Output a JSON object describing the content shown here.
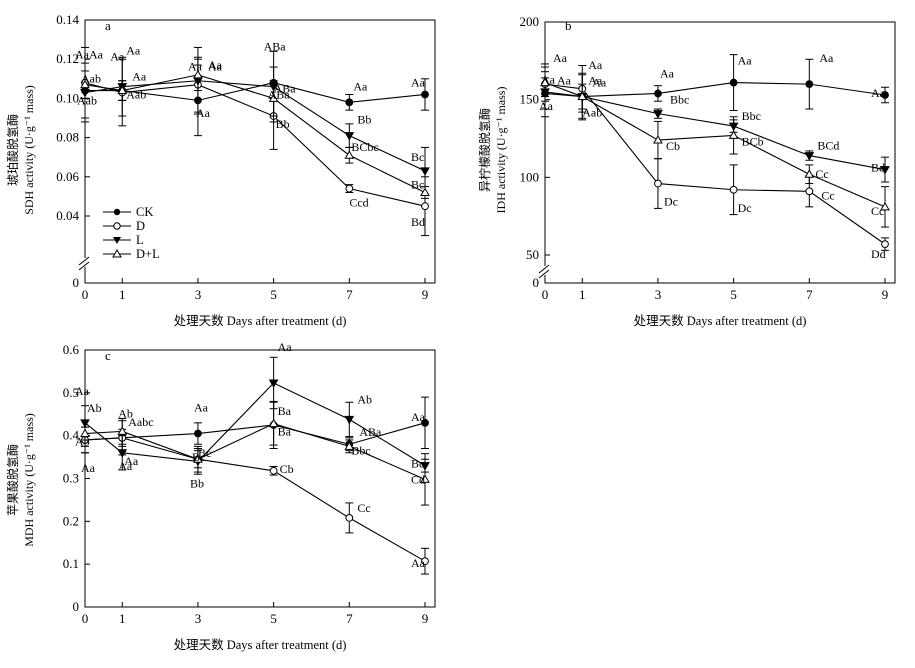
{
  "chart_data": [
    {
      "type": "line",
      "panel_label": "a",
      "xlabel": "处理天数 Days after treatment (d)",
      "ylabel_cn": "琥珀酸脱氢酶",
      "ylabel_en": "SDH activity (U·g⁻¹ mass)",
      "x": [
        0,
        1,
        3,
        5,
        7,
        9
      ],
      "xticks": [
        "0",
        "1",
        "3",
        "5",
        "7",
        "9"
      ],
      "ylim": [
        0.03,
        0.14
      ],
      "yticks": [
        0.04,
        0.06,
        0.08,
        0.1,
        0.12,
        0.14
      ],
      "yticklabels": [
        "0.04",
        "0.06",
        "0.08",
        "0.10",
        "0.12",
        "0.14"
      ],
      "y_zero_label": "0",
      "axis_break": true,
      "legend": {
        "position": "bottom-left",
        "entries": [
          "CK",
          "D",
          "L",
          "D+L"
        ]
      },
      "series": [
        {
          "name": "CK",
          "marker": "filled-circle",
          "values": [
            0.104,
            0.104,
            0.099,
            0.108,
            0.098,
            0.102
          ],
          "errors": [
            0.004,
            0.005,
            0.018,
            0.008,
            0.004,
            0.008
          ],
          "labels": [
            "Aa",
            "Aa",
            "Aa",
            "ABa",
            "Aa",
            "Aa"
          ]
        },
        {
          "name": "D",
          "marker": "open-circle",
          "values": [
            0.108,
            0.103,
            0.107,
            0.091,
            0.054,
            0.045
          ],
          "errors": [
            0.018,
            0.017,
            0.014,
            0.017,
            0.002,
            0.015
          ],
          "labels": [
            "Aa",
            "Aa",
            "Aa",
            "Bb",
            "Ccd",
            "Bd"
          ]
        },
        {
          "name": "L",
          "marker": "filled-triangle-down",
          "values": [
            0.103,
            0.106,
            0.109,
            0.106,
            0.081,
            0.063
          ],
          "errors": [
            0.015,
            0.015,
            0.017,
            0.018,
            0.006,
            0.012
          ],
          "labels": [
            "Aab",
            "Aab",
            "Aa",
            "ABa",
            "Bb",
            "Bc"
          ]
        },
        {
          "name": "D+L",
          "marker": "open-triangle-up",
          "values": [
            0.107,
            0.104,
            0.112,
            0.1,
            0.071,
            0.052
          ],
          "errors": [
            0.007,
            0.005,
            0.008,
            0.009,
            0.004,
            0.003
          ],
          "labels": [
            "Aab",
            "Aa",
            "Aa",
            "ABa",
            "BCbc",
            "Bc"
          ]
        }
      ]
    },
    {
      "type": "line",
      "panel_label": "b",
      "xlabel": "处理天数 Days after treatment (d)",
      "ylabel_cn": "异柠檬酸脱氢酶",
      "ylabel_en": "IDH activity (U·g⁻¹ mass)",
      "x": [
        0,
        1,
        3,
        5,
        7,
        9
      ],
      "xticks": [
        "0",
        "1",
        "3",
        "5",
        "7",
        "9"
      ],
      "ylim": [
        45,
        200
      ],
      "yticks": [
        50,
        100,
        150,
        200
      ],
      "yticklabels": [
        "50",
        "100",
        "150",
        "200"
      ],
      "y_zero_label": "0",
      "axis_break": true,
      "series": [
        {
          "name": "CK",
          "marker": "filled-circle",
          "values": [
            154,
            152,
            154,
            161,
            160,
            153
          ],
          "errors": [
            10,
            8,
            5,
            18,
            16,
            5
          ],
          "labels": [
            "Aa",
            "Aa",
            "Aa",
            "Aa",
            "Aa",
            "Aa"
          ]
        },
        {
          "name": "D",
          "marker": "open-circle",
          "values": [
            160,
            157,
            96,
            92,
            91,
            57
          ],
          "errors": [
            8,
            15,
            16,
            16,
            10,
            4
          ],
          "labels": [
            "Aa",
            "Aa",
            "Dc",
            "Dc",
            "Cc",
            "Dd"
          ]
        },
        {
          "name": "L",
          "marker": "filled-triangle-down",
          "values": [
            155,
            152,
            141,
            133,
            114,
            105
          ],
          "errors": [
            16,
            15,
            3,
            4,
            3,
            8
          ],
          "labels": [
            "Aa",
            "Aa",
            "Bbc",
            "Bbc",
            "BCd",
            "Bd"
          ]
        },
        {
          "name": "D+L",
          "marker": "open-triangle-up",
          "values": [
            161,
            152,
            124,
            127,
            102,
            81
          ],
          "errors": [
            12,
            14,
            12,
            12,
            6,
            13
          ],
          "labels": [
            "Aa",
            "Aab",
            "Cb",
            "BCb",
            "Cc",
            "Cc"
          ]
        }
      ]
    },
    {
      "type": "line",
      "panel_label": "c",
      "xlabel": "处理天数 Days after treatment (d)",
      "ylabel_cn": "苹果酸脱氢酶",
      "ylabel_en": "MDH activity (U·g⁻¹ mass)",
      "x": [
        0,
        1,
        3,
        5,
        7,
        9
      ],
      "xticks": [
        "0",
        "1",
        "3",
        "5",
        "7",
        "9"
      ],
      "ylim": [
        0,
        0.6
      ],
      "yticks": [
        0,
        0.1,
        0.2,
        0.3,
        0.4,
        0.5,
        0.6
      ],
      "yticklabels": [
        "0",
        "0.1",
        "0.2",
        "0.3",
        "0.4",
        "0.5",
        "0.6"
      ],
      "axis_break": false,
      "series": [
        {
          "name": "CK",
          "marker": "filled-circle",
          "values": [
            0.39,
            0.395,
            0.405,
            0.425,
            0.38,
            0.43
          ],
          "errors": [
            0.03,
            0.04,
            0.025,
            0.055,
            0.015,
            0.06
          ],
          "labels": [
            "Aa",
            "Aa",
            "Aa",
            "Ba",
            "ABa",
            "Aa"
          ]
        },
        {
          "name": "D",
          "marker": "open-circle",
          "values": [
            0.39,
            0.395,
            0.345,
            0.318,
            0.208,
            0.107
          ],
          "errors": [
            0.03,
            0.02,
            0.02,
            0.01,
            0.035,
            0.03
          ],
          "labels": [
            "Ab",
            "Aabc",
            "Bc",
            "Cb",
            "Cc",
            "Aa"
          ]
        },
        {
          "name": "L",
          "marker": "filled-triangle-down",
          "values": [
            0.43,
            0.36,
            0.34,
            0.523,
            0.438,
            0.33
          ],
          "errors": [
            0.04,
            0.04,
            0.03,
            0.06,
            0.04,
            0.015
          ],
          "labels": [
            "Aa",
            "Aa",
            "Bb",
            "Aa",
            "Ab",
            "Bc"
          ]
        },
        {
          "name": "D+L",
          "marker": "open-triangle-up",
          "values": [
            0.405,
            0.41,
            0.345,
            0.428,
            0.375,
            0.298
          ],
          "errors": [
            0.03,
            0.03,
            0.03,
            0.05,
            0.015,
            0.06
          ],
          "labels": [
            "Ab",
            "Ab",
            "Bc",
            "Ba",
            "Bbc",
            "Cd"
          ]
        }
      ]
    }
  ]
}
